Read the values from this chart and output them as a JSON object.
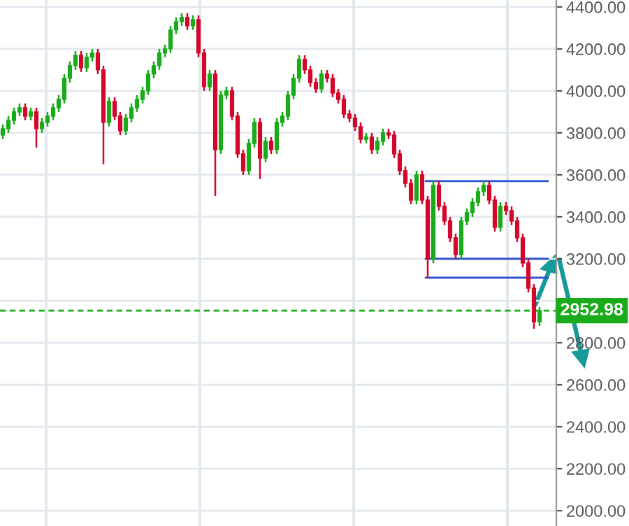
{
  "chart_data": {
    "type": "candlestick",
    "categories": [
      null,
      null,
      null,
      null,
      null,
      null,
      null,
      null,
      null,
      null,
      null,
      null,
      null,
      null,
      null,
      null,
      null,
      null,
      null,
      null,
      null,
      null,
      null,
      null,
      null,
      null,
      null,
      null,
      null,
      null,
      null,
      null,
      null,
      null,
      null,
      null,
      null,
      null,
      null,
      null,
      null,
      null,
      null,
      null,
      null,
      null,
      null,
      null,
      null,
      null,
      null,
      null,
      null,
      null,
      null,
      null,
      null,
      null,
      null,
      null,
      null,
      null,
      null,
      null,
      null,
      null,
      null,
      null,
      null,
      null,
      null,
      null,
      null,
      null,
      null,
      null,
      null,
      null,
      null,
      null,
      null,
      null,
      null,
      null,
      null,
      null,
      null,
      null,
      null,
      null,
      null,
      null,
      null,
      null,
      null,
      null,
      null
    ],
    "ohlc": [
      [
        3790,
        3840,
        3770,
        3820
      ],
      [
        3820,
        3880,
        3800,
        3860
      ],
      [
        3860,
        3920,
        3840,
        3900
      ],
      [
        3900,
        3940,
        3880,
        3920
      ],
      [
        3920,
        3940,
        3860,
        3880
      ],
      [
        3880,
        3920,
        3860,
        3900
      ],
      [
        3900,
        3920,
        3730,
        3820
      ],
      [
        3820,
        3870,
        3800,
        3850
      ],
      [
        3850,
        3900,
        3830,
        3880
      ],
      [
        3880,
        3940,
        3860,
        3920
      ],
      [
        3920,
        3980,
        3900,
        3960
      ],
      [
        3960,
        4080,
        3940,
        4060
      ],
      [
        4060,
        4140,
        4040,
        4120
      ],
      [
        4120,
        4190,
        4100,
        4170
      ],
      [
        4170,
        4190,
        4090,
        4110
      ],
      [
        4110,
        4180,
        4090,
        4160
      ],
      [
        4160,
        4200,
        4140,
        4180
      ],
      [
        4180,
        4200,
        4080,
        4100
      ],
      [
        4100,
        4120,
        3650,
        3850
      ],
      [
        3850,
        3970,
        3830,
        3950
      ],
      [
        3950,
        3970,
        3860,
        3880
      ],
      [
        3880,
        3900,
        3790,
        3810
      ],
      [
        3810,
        3890,
        3790,
        3870
      ],
      [
        3870,
        3940,
        3850,
        3920
      ],
      [
        3920,
        3980,
        3900,
        3960
      ],
      [
        3960,
        4020,
        3940,
        4000
      ],
      [
        4000,
        4100,
        3980,
        4080
      ],
      [
        4080,
        4140,
        4060,
        4120
      ],
      [
        4120,
        4200,
        4100,
        4180
      ],
      [
        4180,
        4220,
        4160,
        4200
      ],
      [
        4200,
        4310,
        4180,
        4290
      ],
      [
        4290,
        4350,
        4270,
        4330
      ],
      [
        4330,
        4370,
        4310,
        4350
      ],
      [
        4350,
        4370,
        4290,
        4310
      ],
      [
        4310,
        4360,
        4290,
        4340
      ],
      [
        4340,
        4360,
        4160,
        4180
      ],
      [
        4180,
        4200,
        4000,
        4020
      ],
      [
        4020,
        4100,
        4000,
        4080
      ],
      [
        4080,
        4100,
        3500,
        3720
      ],
      [
        3720,
        4000,
        3700,
        3980
      ],
      [
        3980,
        4020,
        3960,
        4000
      ],
      [
        4000,
        4020,
        3860,
        3880
      ],
      [
        3880,
        3900,
        3680,
        3700
      ],
      [
        3700,
        3720,
        3600,
        3620
      ],
      [
        3620,
        3770,
        3600,
        3750
      ],
      [
        3750,
        3870,
        3730,
        3850
      ],
      [
        3850,
        3870,
        3580,
        3680
      ],
      [
        3680,
        3780,
        3660,
        3760
      ],
      [
        3760,
        3780,
        3700,
        3720
      ],
      [
        3720,
        3870,
        3700,
        3850
      ],
      [
        3850,
        3900,
        3830,
        3880
      ],
      [
        3880,
        4000,
        3860,
        3980
      ],
      [
        3980,
        4080,
        3960,
        4060
      ],
      [
        4060,
        4170,
        4040,
        4150
      ],
      [
        4150,
        4170,
        4080,
        4100
      ],
      [
        4100,
        4120,
        4020,
        4040
      ],
      [
        4040,
        4060,
        3990,
        4010
      ],
      [
        4010,
        4100,
        3990,
        4080
      ],
      [
        4080,
        4100,
        4040,
        4060
      ],
      [
        4060,
        4080,
        3970,
        3990
      ],
      [
        3990,
        4010,
        3940,
        3960
      ],
      [
        3960,
        3980,
        3870,
        3890
      ],
      [
        3890,
        3910,
        3850,
        3870
      ],
      [
        3870,
        3890,
        3810,
        3830
      ],
      [
        3830,
        3850,
        3750,
        3770
      ],
      [
        3770,
        3800,
        3750,
        3780
      ],
      [
        3780,
        3800,
        3700,
        3720
      ],
      [
        3720,
        3780,
        3700,
        3760
      ],
      [
        3760,
        3820,
        3740,
        3800
      ],
      [
        3800,
        3820,
        3770,
        3790
      ],
      [
        3790,
        3810,
        3680,
        3700
      ],
      [
        3700,
        3720,
        3600,
        3620
      ],
      [
        3620,
        3640,
        3540,
        3560
      ],
      [
        3560,
        3580,
        3460,
        3480
      ],
      [
        3480,
        3620,
        3460,
        3600
      ],
      [
        3600,
        3620,
        3460,
        3480
      ],
      [
        3480,
        3500,
        3110,
        3200
      ],
      [
        3200,
        3570,
        3180,
        3550
      ],
      [
        3550,
        3570,
        3430,
        3450
      ],
      [
        3450,
        3470,
        3360,
        3380
      ],
      [
        3380,
        3400,
        3280,
        3300
      ],
      [
        3300,
        3320,
        3200,
        3220
      ],
      [
        3220,
        3400,
        3200,
        3380
      ],
      [
        3380,
        3440,
        3360,
        3420
      ],
      [
        3420,
        3490,
        3400,
        3470
      ],
      [
        3470,
        3540,
        3450,
        3520
      ],
      [
        3520,
        3570,
        3500,
        3550
      ],
      [
        3550,
        3570,
        3460,
        3480
      ],
      [
        3480,
        3500,
        3330,
        3350
      ],
      [
        3350,
        3470,
        3330,
        3450
      ],
      [
        3450,
        3470,
        3410,
        3430
      ],
      [
        3430,
        3450,
        3360,
        3380
      ],
      [
        3380,
        3400,
        3280,
        3300
      ],
      [
        3300,
        3320,
        3160,
        3180
      ],
      [
        3180,
        3200,
        3040,
        3060
      ],
      [
        3060,
        3080,
        2867,
        2900
      ],
      [
        2900,
        2970,
        2880,
        2953
      ]
    ],
    "colors": [
      "#1aab1a",
      "#1aab1a",
      "#1aab1a",
      "#1aab1a",
      "#d3062b",
      "#1aab1a",
      "#d3062b",
      "#1aab1a",
      "#1aab1a",
      "#1aab1a",
      "#1aab1a",
      "#1aab1a",
      "#1aab1a",
      "#1aab1a",
      "#d3062b",
      "#1aab1a",
      "#1aab1a",
      "#d3062b",
      "#d3062b",
      "#1aab1a",
      "#d3062b",
      "#d3062b",
      "#1aab1a",
      "#1aab1a",
      "#1aab1a",
      "#1aab1a",
      "#1aab1a",
      "#1aab1a",
      "#1aab1a",
      "#1aab1a",
      "#1aab1a",
      "#1aab1a",
      "#1aab1a",
      "#d3062b",
      "#1aab1a",
      "#d3062b",
      "#d3062b",
      "#1aab1a",
      "#d3062b",
      "#1aab1a",
      "#1aab1a",
      "#d3062b",
      "#d3062b",
      "#d3062b",
      "#1aab1a",
      "#1aab1a",
      "#d3062b",
      "#1aab1a",
      "#d3062b",
      "#1aab1a",
      "#1aab1a",
      "#1aab1a",
      "#1aab1a",
      "#1aab1a",
      "#d3062b",
      "#d3062b",
      "#d3062b",
      "#1aab1a",
      "#d3062b",
      "#d3062b",
      "#d3062b",
      "#d3062b",
      "#d3062b",
      "#d3062b",
      "#d3062b",
      "#1aab1a",
      "#d3062b",
      "#1aab1a",
      "#1aab1a",
      "#d3062b",
      "#d3062b",
      "#d3062b",
      "#d3062b",
      "#d3062b",
      "#1aab1a",
      "#d3062b",
      "#d3062b",
      "#1aab1a",
      "#d3062b",
      "#d3062b",
      "#d3062b",
      "#d3062b",
      "#1aab1a",
      "#1aab1a",
      "#1aab1a",
      "#1aab1a",
      "#1aab1a",
      "#d3062b",
      "#d3062b",
      "#1aab1a",
      "#d3062b",
      "#d3062b",
      "#d3062b",
      "#d3062b",
      "#d3062b",
      "#d3062b",
      "#1aab1a"
    ],
    "ylim": [
      1927,
      4433
    ],
    "yticks": [
      {
        "value": 2000,
        "label": "2000.00"
      },
      {
        "value": 2200,
        "label": "2200.00"
      },
      {
        "value": 2400,
        "label": "2400.00"
      },
      {
        "value": 2600,
        "label": "2600.00"
      },
      {
        "value": 2800,
        "label": "2800.00"
      },
      {
        "value": 3000,
        "label": null
      },
      {
        "value": 3200,
        "label": "3200.00"
      },
      {
        "value": 3400,
        "label": "3400.00"
      },
      {
        "value": 3600,
        "label": "3600.00"
      },
      {
        "value": 3800,
        "label": "3800.00"
      },
      {
        "value": 4000,
        "label": "4000.00"
      },
      {
        "value": 4200,
        "label": "4200.00"
      },
      {
        "value": 4400,
        "label": "4400.00"
      }
    ],
    "grid": "y",
    "tick_labels": "y",
    "ref_lines": [
      {
        "axis": "y",
        "value": 2952.98,
        "label": "2952.98",
        "color": "#1aab1a",
        "line_style": "dashed"
      },
      {
        "axis": "y",
        "value": 3570,
        "color": "#3355cc",
        "line_style": "solid"
      },
      {
        "axis": "y",
        "value": 3200,
        "color": "#3355cc",
        "line_style": "solid"
      },
      {
        "axis": "y",
        "value": 3110,
        "color": "#3355cc",
        "line_style": "solid"
      }
    ]
  }
}
